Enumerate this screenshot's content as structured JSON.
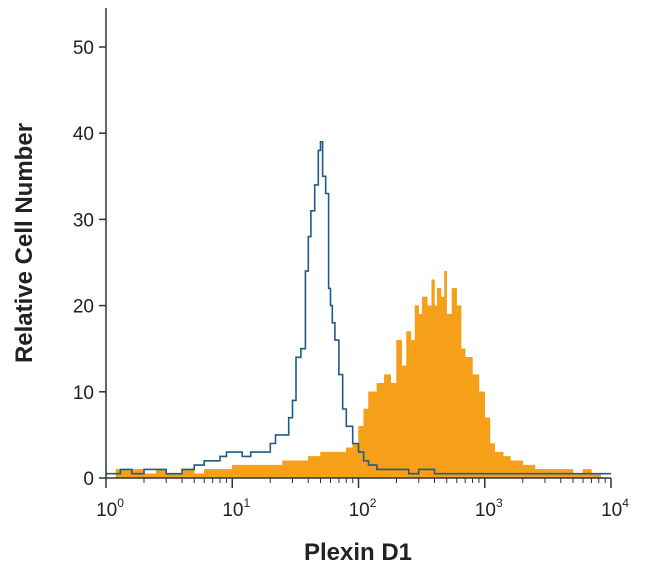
{
  "chart_data": {
    "type": "area",
    "xlabel": "Plexin D1",
    "ylabel": "Relative Cell Number",
    "x_scale": "log",
    "xlim": [
      1,
      10000
    ],
    "ylim": [
      0,
      55
    ],
    "grid": false,
    "x_ticks": [
      {
        "base": "10",
        "exp": "0"
      },
      {
        "base": "10",
        "exp": "1"
      },
      {
        "base": "10",
        "exp": "2"
      },
      {
        "base": "10",
        "exp": "3"
      },
      {
        "base": "10",
        "exp": "4"
      }
    ],
    "y_ticks": [
      "0",
      "10",
      "20",
      "30",
      "40",
      "50"
    ],
    "series": [
      {
        "style": "filled",
        "color": "#f6a01a",
        "x": [
          1.2,
          1.6,
          2,
          2.5,
          3,
          4,
          5,
          6,
          7,
          8,
          10,
          12,
          15,
          20,
          25,
          30,
          35,
          40,
          50,
          60,
          70,
          80,
          90,
          100,
          110,
          120,
          130,
          140,
          160,
          180,
          200,
          220,
          240,
          260,
          280,
          300,
          320,
          350,
          380,
          400,
          420,
          450,
          480,
          500,
          550,
          600,
          650,
          700,
          800,
          900,
          1000,
          1100,
          1200,
          1400,
          1600,
          1800,
          2000,
          2500,
          3000,
          4000,
          5000,
          6000,
          7000,
          8000
        ],
        "values": [
          1,
          1,
          0.5,
          1,
          0.5,
          1,
          0.5,
          1,
          1,
          1,
          1.5,
          1.5,
          1.5,
          1.5,
          2,
          2,
          2,
          2.5,
          3,
          3,
          3,
          3.5,
          4,
          6,
          8,
          10,
          10,
          11,
          12,
          11,
          16,
          13,
          17,
          16,
          20,
          19,
          21,
          20,
          23,
          20,
          22,
          21,
          24,
          19,
          22,
          20,
          15,
          14,
          12,
          10,
          7,
          4,
          3,
          2.5,
          2,
          2,
          1.5,
          1,
          1,
          1,
          0.5,
          1,
          0.5,
          0.5
        ]
      },
      {
        "style": "outline",
        "color": "#1f5b8a",
        "x": [
          1,
          1.3,
          1.6,
          2,
          2.5,
          3,
          4,
          5,
          6,
          7,
          8,
          9,
          10,
          12,
          14,
          16,
          18,
          20,
          22,
          25,
          28,
          30,
          32,
          35,
          38,
          40,
          42,
          45,
          48,
          50,
          52,
          55,
          58,
          60,
          62,
          65,
          70,
          75,
          80,
          90,
          100,
          110,
          120,
          140,
          160,
          200,
          250,
          300,
          400,
          500,
          700,
          1000,
          2000,
          10000
        ],
        "values": [
          0.5,
          1,
          0.5,
          1,
          1,
          0.5,
          1,
          1.5,
          2,
          2,
          2.5,
          3,
          3,
          2.5,
          3,
          3,
          3,
          4,
          5,
          5,
          7,
          9,
          14,
          15,
          24,
          28,
          31,
          34,
          38,
          39,
          35,
          33,
          22,
          20,
          18,
          16,
          12,
          8,
          6,
          4,
          3,
          2,
          1.5,
          1,
          1,
          1,
          0.5,
          1,
          0.5,
          0.5,
          0.5,
          0.5,
          0.5,
          0.5
        ]
      }
    ]
  }
}
